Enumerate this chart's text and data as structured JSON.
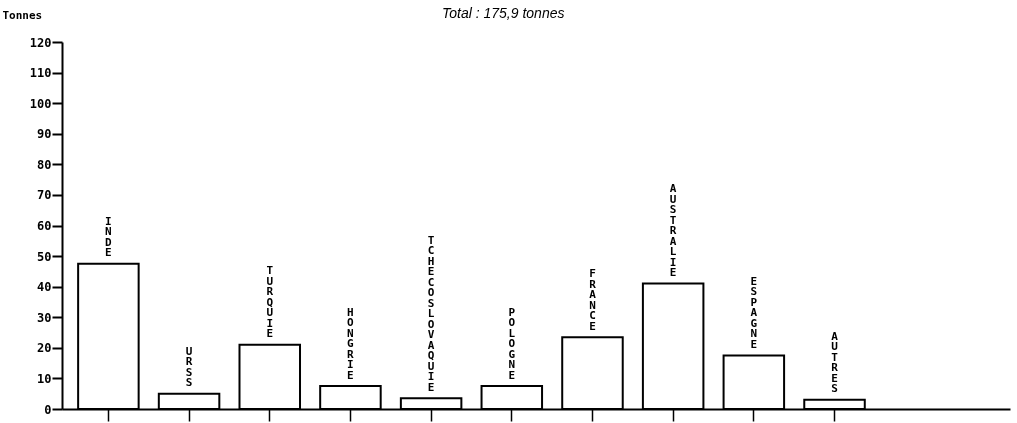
{
  "chart_data": {
    "type": "bar",
    "title": "Total : 175,9 tonnes",
    "ylabel": "Tonnes",
    "categories": [
      "INDE",
      "URSS",
      "TURQUIE",
      "HONGRIE",
      "TCHECOSLOVAQUIE",
      "POLOGNE",
      "FRANCE",
      "AUSTRALIE",
      "ESPAGNE",
      "AUTRES"
    ],
    "values": [
      47.5,
      5,
      21,
      7.5,
      3.5,
      7.5,
      23.5,
      41,
      17.5,
      3
    ],
    "color": "#ffffff",
    "ylim": [
      0,
      120
    ],
    "yticks": [
      0,
      10,
      20,
      30,
      40,
      50,
      60,
      70,
      80,
      90,
      100,
      110,
      120
    ],
    "tick_labels": "y"
  }
}
